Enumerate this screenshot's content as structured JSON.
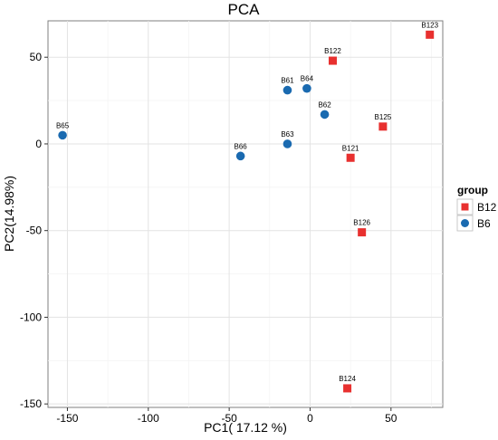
{
  "chart_data": {
    "type": "scatter",
    "title": "PCA",
    "xlabel": "PC1( 17.12 %)",
    "ylabel": "PC2(14.98%)",
    "xlim": [
      -162,
      82
    ],
    "ylim": [
      -152,
      71
    ],
    "xticks": [
      -150,
      -100,
      -50,
      0,
      50
    ],
    "yticks": [
      50,
      0,
      -50,
      -100,
      -150
    ],
    "grid": true,
    "legend": {
      "title": "group",
      "placement": "right",
      "entries": [
        {
          "label": "B12",
          "shape": "square",
          "color": "#e8302f"
        },
        {
          "label": "B6",
          "shape": "circle",
          "color": "#1a6ab0"
        }
      ]
    },
    "series": [
      {
        "name": "B12",
        "color": "#e8302f",
        "marker": "square",
        "points": [
          {
            "label": "B123",
            "x": 74,
            "y": 63
          },
          {
            "label": "B122",
            "x": 14,
            "y": 48
          },
          {
            "label": "B125",
            "x": 45,
            "y": 10
          },
          {
            "label": "B121",
            "x": 25,
            "y": -8
          },
          {
            "label": "B126",
            "x": 32,
            "y": -51
          },
          {
            "label": "B124",
            "x": 23,
            "y": -141
          }
        ]
      },
      {
        "name": "B6",
        "color": "#1a6ab0",
        "marker": "circle",
        "points": [
          {
            "label": "B65",
            "x": -153,
            "y": 5
          },
          {
            "label": "B61",
            "x": -14,
            "y": 31
          },
          {
            "label": "B64",
            "x": -2,
            "y": 32
          },
          {
            "label": "B62",
            "x": 9,
            "y": 17
          },
          {
            "label": "B63",
            "x": -14,
            "y": 0
          },
          {
            "label": "B66",
            "x": -43,
            "y": -7
          }
        ]
      }
    ]
  }
}
